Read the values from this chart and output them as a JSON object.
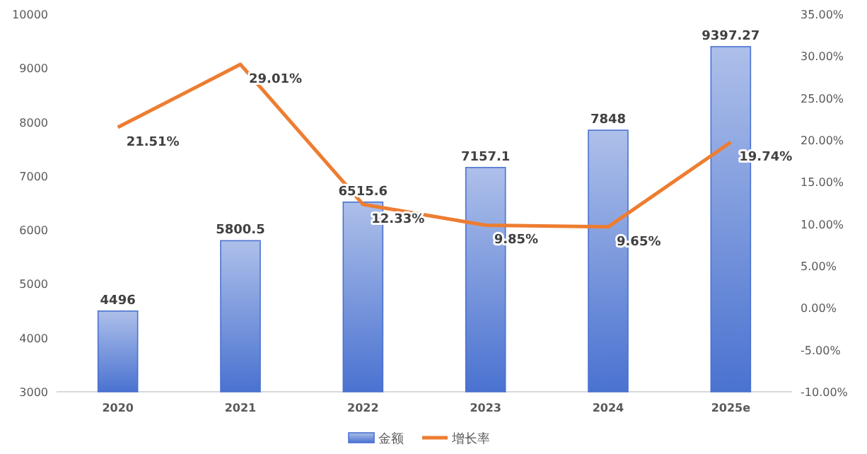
{
  "chart_data": {
    "type": "bar",
    "categories": [
      "2020",
      "2021",
      "2022",
      "2023",
      "2024",
      "2025e"
    ],
    "series": [
      {
        "name": "金额",
        "color": "#4a72d0",
        "values": [
          4496,
          5800.5,
          6515.6,
          7157.1,
          7848,
          9397.27
        ]
      },
      {
        "name": "增长率",
        "type": "line",
        "axis": "y2",
        "color": "#ed7d31",
        "values": [
          21.51,
          29.01,
          12.33,
          9.85,
          9.65,
          19.74
        ],
        "value_labels": [
          "21.51%",
          "29.01%",
          "12.33%",
          "9.85%",
          "9.65%",
          "19.74%"
        ]
      }
    ],
    "data_labels": true,
    "ylim": [
      3000,
      10000
    ],
    "yticks": [
      3000,
      4000,
      5000,
      6000,
      7000,
      8000,
      9000,
      10000
    ],
    "y2lim": [
      -10,
      35
    ],
    "y2ticks": [
      {
        "value": -10,
        "label": "-10.00%"
      },
      {
        "value": -5,
        "label": "-5.00%"
      },
      {
        "value": 0,
        "label": "0.00%"
      },
      {
        "value": 5,
        "label": "5.00%"
      },
      {
        "value": 10,
        "label": "10.00%"
      },
      {
        "value": 15,
        "label": "15.00%"
      },
      {
        "value": 20,
        "label": "20.00%"
      },
      {
        "value": 25,
        "label": "25.00%"
      },
      {
        "value": 30,
        "label": "30.00%"
      },
      {
        "value": 35,
        "label": "35.00%"
      }
    ],
    "grid": false,
    "legend": "bottom",
    "marker": "none",
    "line_style": "solid"
  }
}
